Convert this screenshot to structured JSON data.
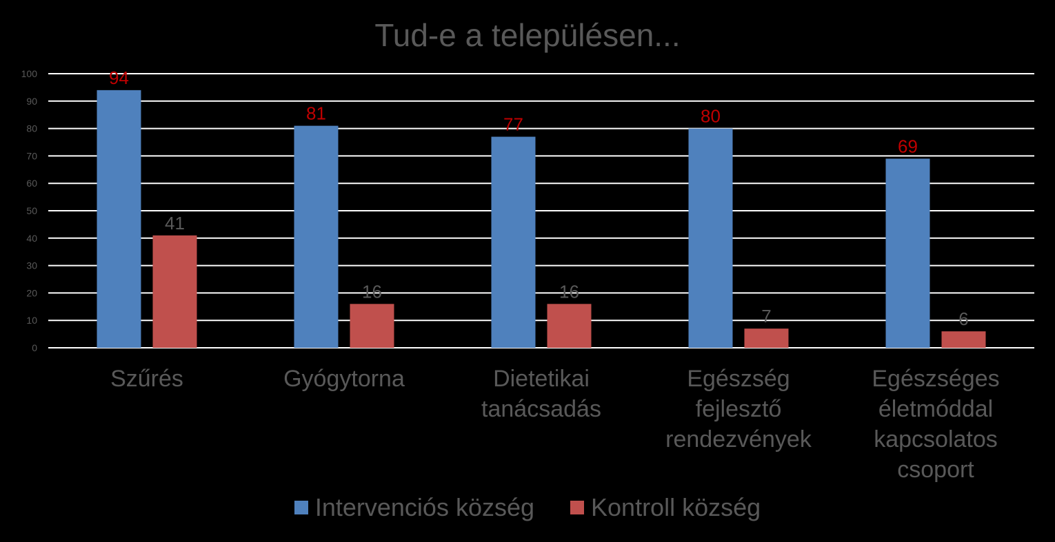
{
  "chart_data": {
    "type": "bar",
    "title": "Tud-e a településen...",
    "categories": [
      [
        "Szűrés"
      ],
      [
        "Gyógytorna"
      ],
      [
        "Dietetikai",
        "tanácsadás"
      ],
      [
        "Egészség",
        "fejlesztő",
        "rendezvények"
      ],
      [
        "Egészséges",
        "életmóddal",
        "kapcsolatos",
        "csoport"
      ]
    ],
    "series": [
      {
        "name": "Intervenciós község",
        "values": [
          94,
          81,
          77,
          80,
          69
        ],
        "color": "#4f81bd",
        "label_color": "#c00000"
      },
      {
        "name": "Kontroll község",
        "values": [
          41,
          16,
          16,
          7,
          6
        ],
        "color": "#c0504d",
        "label_color": "#595959"
      }
    ],
    "ylim": [
      0,
      100
    ],
    "yticks": [
      0,
      10,
      20,
      30,
      40,
      50,
      60,
      70,
      80,
      90,
      100
    ],
    "xlabel": "",
    "ylabel": "",
    "grid": true,
    "legend_position": "bottom"
  },
  "colors": {
    "background": "#000000",
    "gridline": "#ffffff",
    "text": "#595959"
  }
}
